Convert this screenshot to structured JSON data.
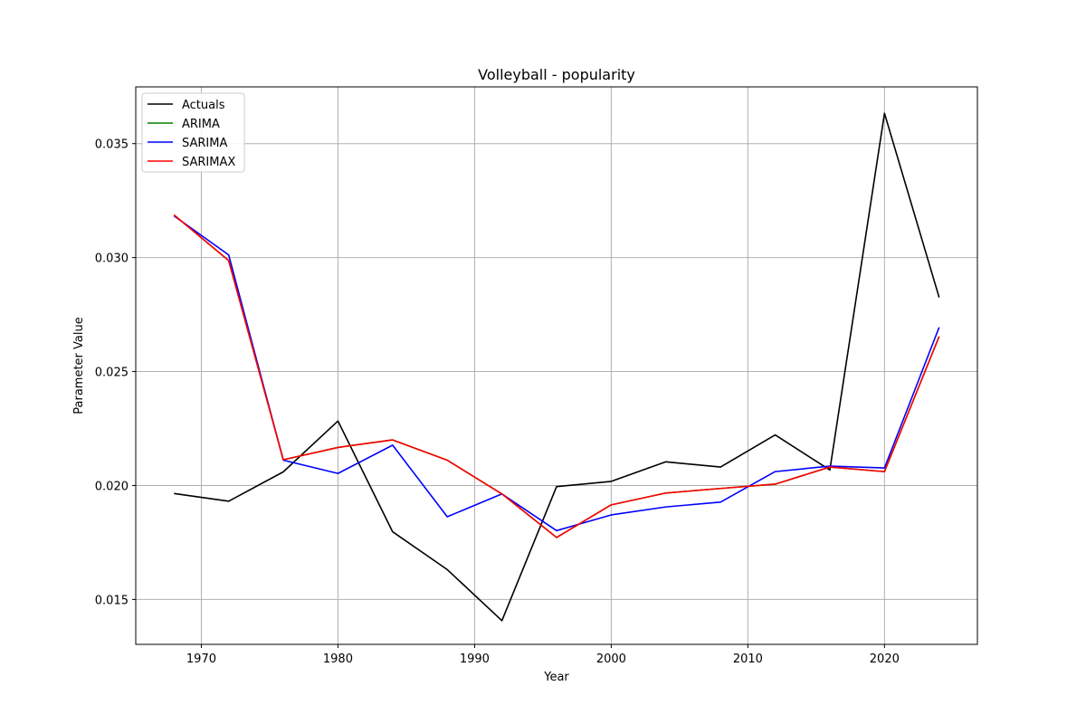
{
  "chart_data": {
    "type": "line",
    "title": "Volleyball - popularity",
    "xlabel": "Year",
    "ylabel": "Parameter Value",
    "xlim": [
      1965.2,
      1926.8
    ],
    "ylim": [
      0.01303,
      0.03749
    ],
    "xticks": [
      1970,
      1980,
      1990,
      2000,
      2010,
      2020
    ],
    "yticks": [
      0.015,
      0.02,
      0.025,
      0.03,
      0.035
    ],
    "ytick_labels": [
      "0.015",
      "0.020",
      "0.025",
      "0.030",
      "0.035"
    ],
    "grid": true,
    "legend_position": "top-left",
    "x": [
      1968,
      1972,
      1976,
      1980,
      1984,
      1988,
      1992,
      1996,
      2000,
      2004,
      2008,
      2012,
      2016,
      2020,
      2024
    ],
    "series": [
      {
        "name": "Actuals",
        "color": "#000000",
        "values": [
          0.01965,
          0.01931,
          0.0206,
          0.02283,
          0.01797,
          0.01631,
          0.01407,
          0.01995,
          0.02018,
          0.02104,
          0.02081,
          0.02222,
          0.02068,
          0.03633,
          0.02825
        ]
      },
      {
        "name": "ARIMA",
        "color": "#008000",
        "values": [
          0.03187,
          0.02987,
          0.02113,
          0.02167,
          0.022,
          0.02111,
          0.01963,
          0.01772,
          0.01915,
          0.01967,
          0.01987,
          0.02006,
          0.02081,
          0.02061,
          0.02654
        ]
      },
      {
        "name": "SARIMA",
        "color": "#0000ff",
        "values": [
          0.03183,
          0.03012,
          0.02111,
          0.02053,
          0.02177,
          0.01863,
          0.01963,
          0.01802,
          0.01871,
          0.01906,
          0.01927,
          0.02061,
          0.02085,
          0.02077,
          0.02694
        ]
      },
      {
        "name": "SARIMAX",
        "color": "#ff0000",
        "values": [
          0.03187,
          0.02987,
          0.02113,
          0.02167,
          0.022,
          0.02111,
          0.01963,
          0.01772,
          0.01915,
          0.01967,
          0.01987,
          0.02006,
          0.02081,
          0.02061,
          0.02654
        ]
      }
    ]
  }
}
